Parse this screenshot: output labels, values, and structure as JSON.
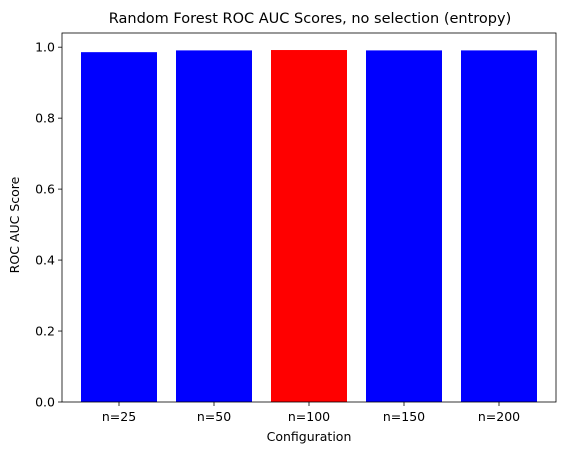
{
  "chart_data": {
    "type": "bar",
    "title": "Random Forest ROC AUC Scores, no selection (entropy)",
    "xlabel": "Configuration",
    "ylabel": "ROC AUC Score",
    "categories": [
      "n=25",
      "n=50",
      "n=100",
      "n=150",
      "n=200"
    ],
    "values": [
      0.986,
      0.991,
      0.992,
      0.991,
      0.991
    ],
    "ylim": [
      0,
      1.04
    ],
    "yticks": [
      0.0,
      0.2,
      0.4,
      0.6,
      0.8,
      1.0
    ],
    "ytick_labels": [
      "0.0",
      "0.2",
      "0.4",
      "0.6",
      "0.8",
      "1.0"
    ],
    "bar_colors": [
      "#0000ff",
      "#0000ff",
      "#ff0000",
      "#0000ff",
      "#0000ff"
    ],
    "highlighted_category": "n=100",
    "grid": false,
    "legend": "none"
  }
}
